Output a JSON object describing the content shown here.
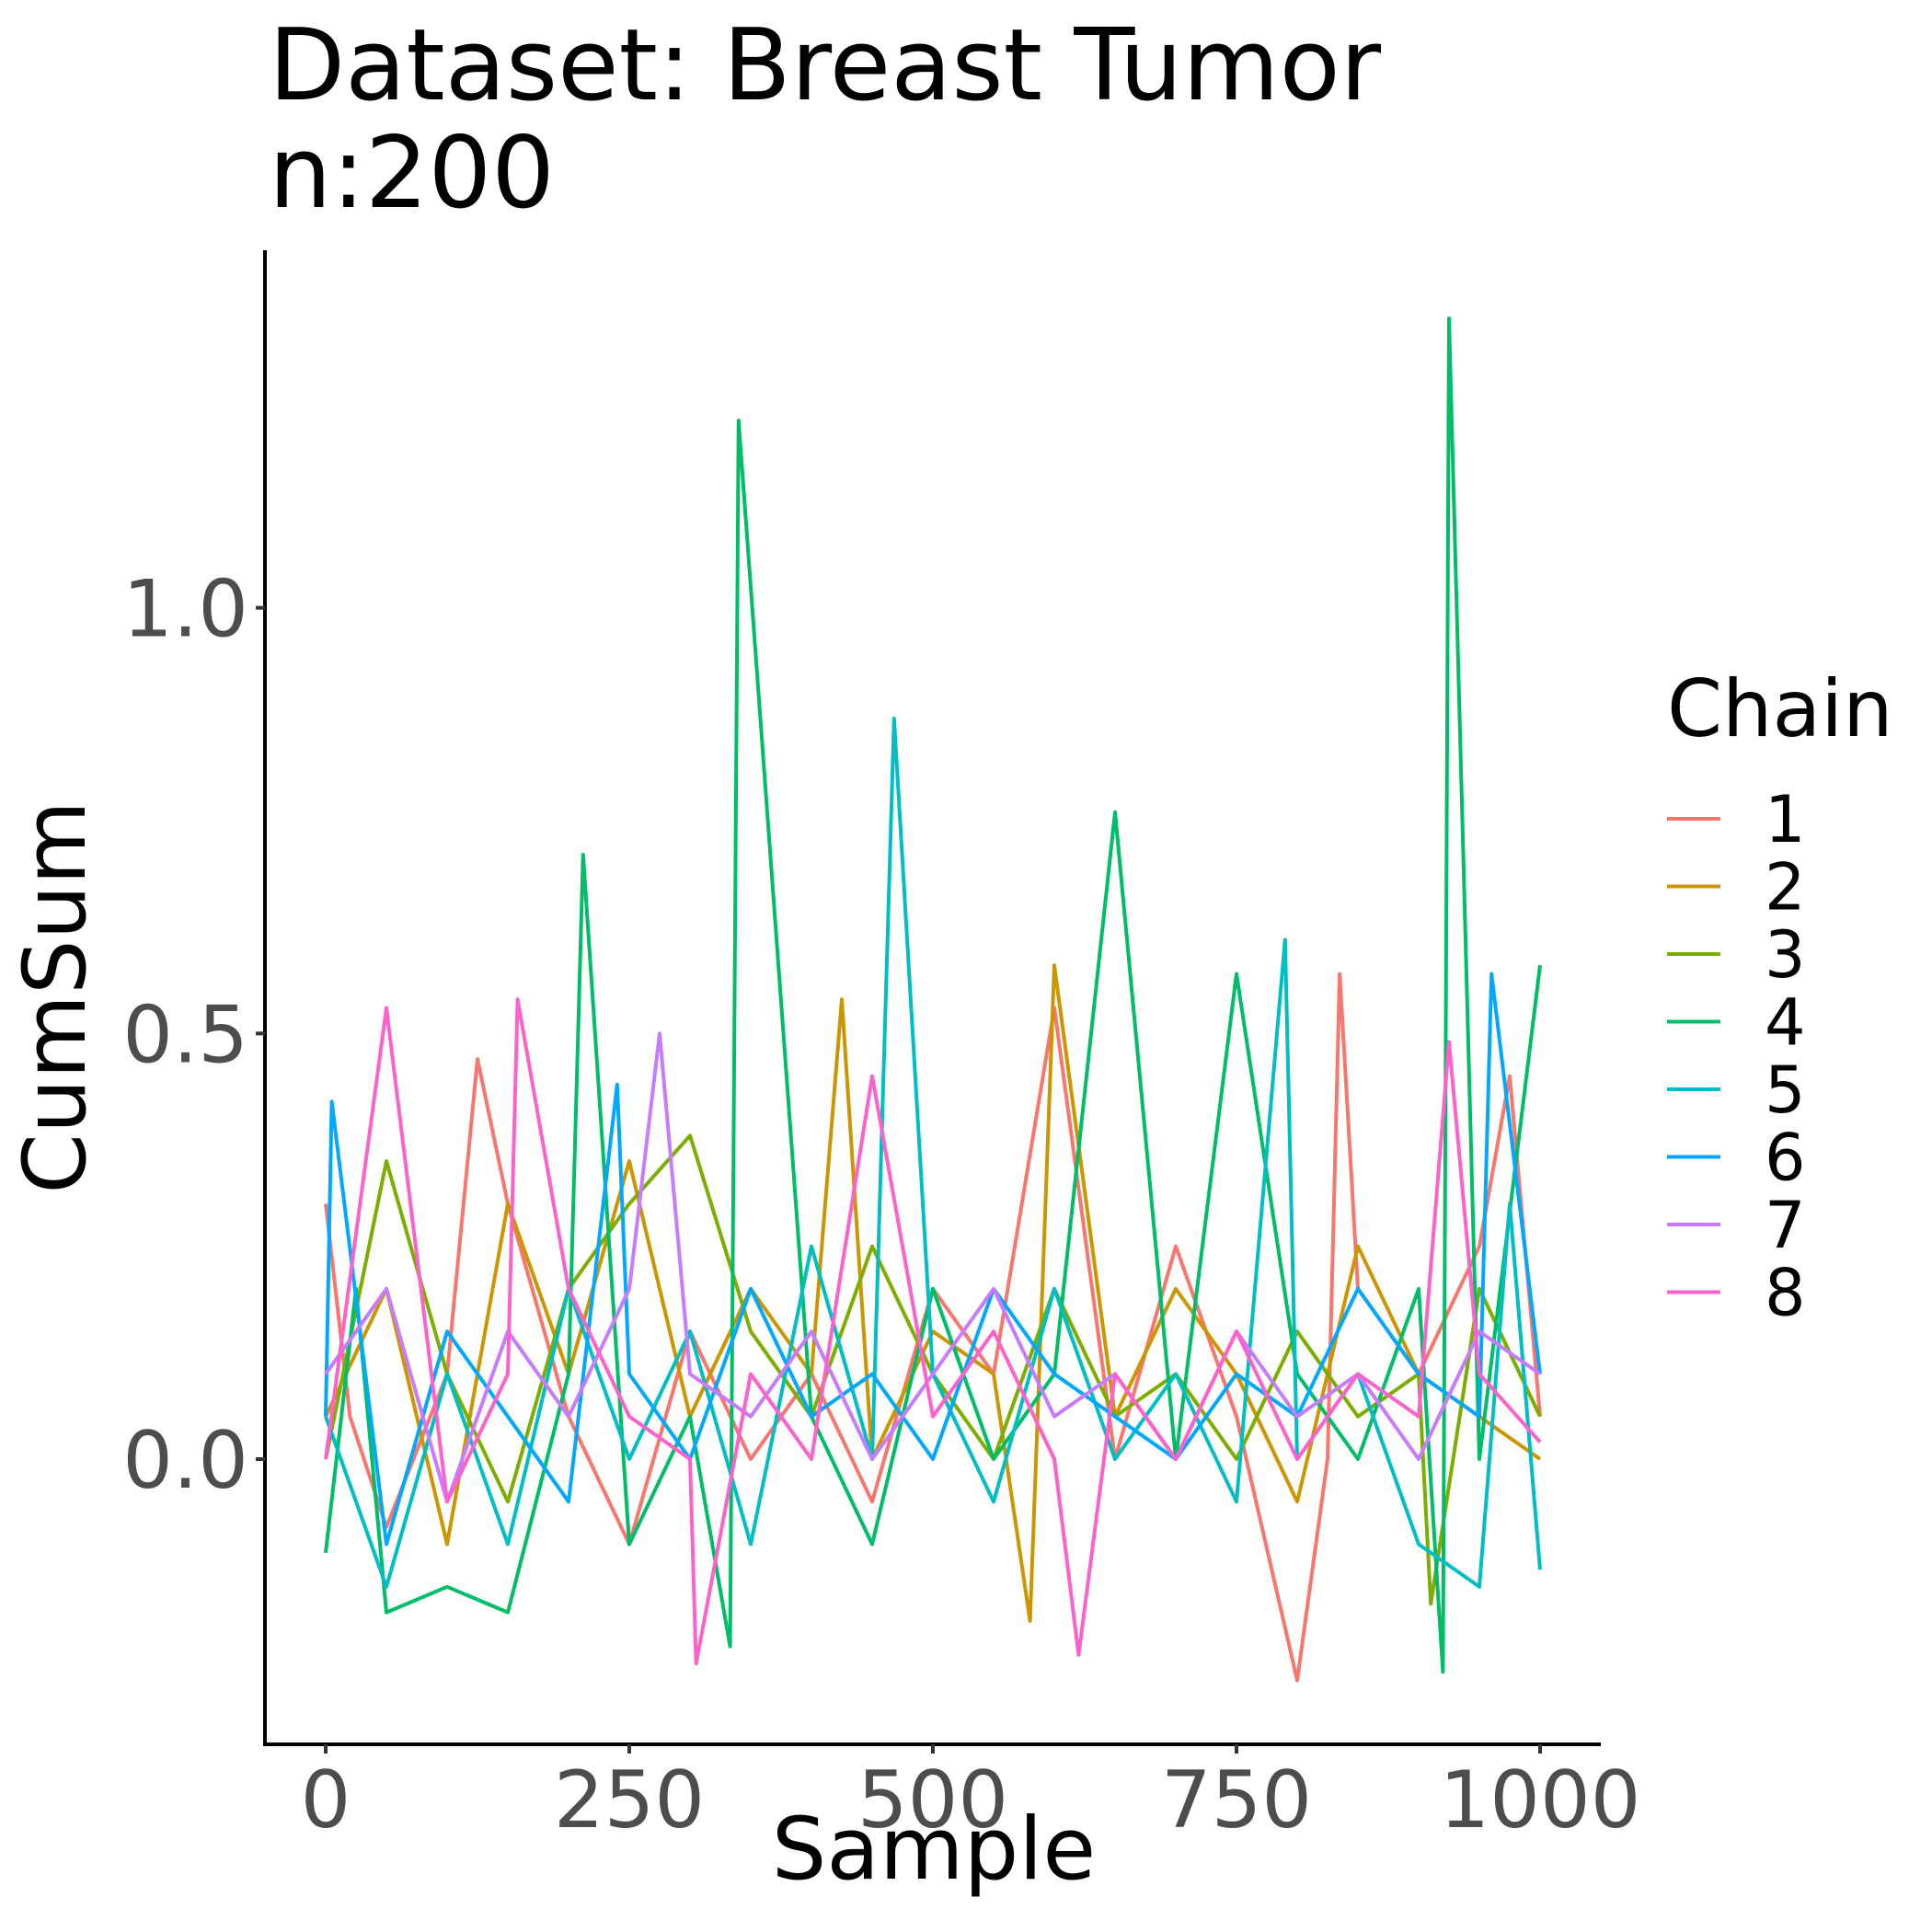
{
  "chart_data": {
    "type": "line",
    "title": "Dataset: Breast Tumor",
    "subtitle": "n:200",
    "xlabel": "Sample",
    "ylabel": "CumSum",
    "xlim": [
      -50,
      1050
    ],
    "ylim": [
      -0.335,
      1.42
    ],
    "xticks": [
      0,
      250,
      500,
      750,
      1000
    ],
    "xtick_labels": [
      "0",
      "250",
      "500",
      "750",
      "1000"
    ],
    "yticks": [
      0.0,
      0.5,
      1.0
    ],
    "ytick_labels": [
      "0.0",
      "0.5",
      "1.0"
    ],
    "grid": false,
    "legend": {
      "title": "Chain",
      "placement": "right"
    },
    "series": [
      {
        "name": "1",
        "color": "#F8766D",
        "x": [
          0,
          20,
          50,
          100,
          125,
          150,
          200,
          250,
          300,
          350,
          400,
          450,
          500,
          550,
          600,
          650,
          700,
          750,
          800,
          825,
          835,
          850,
          900,
          950,
          975,
          1000
        ],
        "values": [
          0.3,
          0.05,
          -0.08,
          0.1,
          0.47,
          0.3,
          0.05,
          -0.1,
          0.15,
          0.0,
          0.1,
          -0.05,
          0.2,
          0.1,
          0.53,
          0.0,
          0.25,
          0.05,
          -0.26,
          0.0,
          0.57,
          0.2,
          0.1,
          0.25,
          0.45,
          0.05
        ]
      },
      {
        "name": "2",
        "color": "#CD9600",
        "x": [
          0,
          50,
          100,
          150,
          200,
          250,
          300,
          350,
          400,
          425,
          450,
          500,
          550,
          580,
          600,
          650,
          700,
          750,
          800,
          850,
          900,
          950,
          1000
        ],
        "values": [
          0.05,
          0.2,
          -0.1,
          0.3,
          0.1,
          0.35,
          0.05,
          0.2,
          0.1,
          0.54,
          0.0,
          0.15,
          0.1,
          -0.19,
          0.58,
          0.05,
          0.2,
          0.1,
          -0.05,
          0.25,
          0.1,
          0.05,
          0.0
        ]
      },
      {
        "name": "3",
        "color": "#7CAE00",
        "x": [
          0,
          50,
          100,
          150,
          200,
          250,
          300,
          350,
          400,
          450,
          500,
          550,
          600,
          650,
          700,
          750,
          800,
          850,
          900,
          910,
          950,
          1000
        ],
        "values": [
          0.0,
          0.35,
          0.1,
          -0.05,
          0.2,
          0.3,
          0.38,
          0.15,
          0.05,
          0.25,
          0.1,
          0.0,
          0.2,
          0.05,
          0.1,
          0.0,
          0.15,
          0.05,
          0.1,
          -0.17,
          0.2,
          0.05
        ]
      },
      {
        "name": "4",
        "color": "#00BE67",
        "x": [
          0,
          25,
          50,
          100,
          150,
          200,
          212,
          250,
          300,
          333,
          340,
          400,
          450,
          500,
          550,
          600,
          650,
          700,
          750,
          800,
          850,
          900,
          920,
          925,
          950,
          1000
        ],
        "values": [
          -0.11,
          0.2,
          -0.18,
          -0.15,
          -0.18,
          0.1,
          0.71,
          -0.1,
          0.05,
          -0.22,
          1.22,
          0.05,
          -0.1,
          0.2,
          0.0,
          0.1,
          0.76,
          0.0,
          0.57,
          0.1,
          0.0,
          0.2,
          -0.25,
          1.34,
          0.0,
          0.58
        ]
      },
      {
        "name": "5",
        "color": "#00BFC4",
        "x": [
          0,
          50,
          100,
          150,
          200,
          250,
          300,
          350,
          400,
          450,
          468,
          500,
          550,
          600,
          650,
          700,
          750,
          790,
          800,
          850,
          900,
          950,
          975,
          1000
        ],
        "values": [
          0.05,
          -0.15,
          0.1,
          -0.1,
          0.2,
          0.0,
          0.15,
          -0.1,
          0.25,
          0.0,
          0.87,
          0.1,
          -0.05,
          0.2,
          0.0,
          0.1,
          -0.05,
          0.61,
          0.0,
          0.1,
          -0.1,
          -0.15,
          0.3,
          -0.13
        ]
      },
      {
        "name": "6",
        "color": "#00A9FF",
        "x": [
          0,
          5,
          50,
          100,
          150,
          200,
          240,
          250,
          300,
          350,
          400,
          450,
          500,
          550,
          600,
          650,
          700,
          750,
          800,
          850,
          900,
          950,
          960,
          1000
        ],
        "values": [
          0.05,
          0.42,
          -0.1,
          0.15,
          0.05,
          -0.05,
          0.44,
          0.1,
          0.0,
          0.2,
          0.05,
          0.1,
          0.0,
          0.2,
          0.1,
          0.05,
          0.0,
          0.1,
          0.05,
          0.2,
          0.1,
          0.05,
          0.57,
          0.1
        ]
      },
      {
        "name": "7",
        "color": "#C77CFF",
        "x": [
          0,
          50,
          100,
          150,
          200,
          250,
          275,
          300,
          350,
          400,
          450,
          500,
          550,
          600,
          650,
          700,
          750,
          800,
          850,
          900,
          950,
          1000
        ],
        "values": [
          0.1,
          0.2,
          -0.05,
          0.15,
          0.05,
          0.2,
          0.5,
          0.1,
          0.05,
          0.15,
          0.0,
          0.1,
          0.2,
          0.05,
          0.1,
          0.0,
          0.15,
          0.05,
          0.1,
          0.0,
          0.15,
          0.1
        ]
      },
      {
        "name": "8",
        "color": "#FF61CC",
        "x": [
          0,
          50,
          100,
          150,
          158,
          200,
          250,
          300,
          305,
          350,
          400,
          450,
          500,
          550,
          600,
          620,
          650,
          700,
          750,
          800,
          850,
          900,
          925,
          950,
          1000
        ],
        "values": [
          0.0,
          0.53,
          -0.05,
          0.1,
          0.54,
          0.2,
          0.05,
          0.0,
          -0.24,
          0.1,
          0.0,
          0.45,
          0.05,
          0.15,
          0.0,
          -0.23,
          0.1,
          0.0,
          0.15,
          0.0,
          0.1,
          0.05,
          0.49,
          0.1,
          0.02
        ]
      }
    ]
  }
}
